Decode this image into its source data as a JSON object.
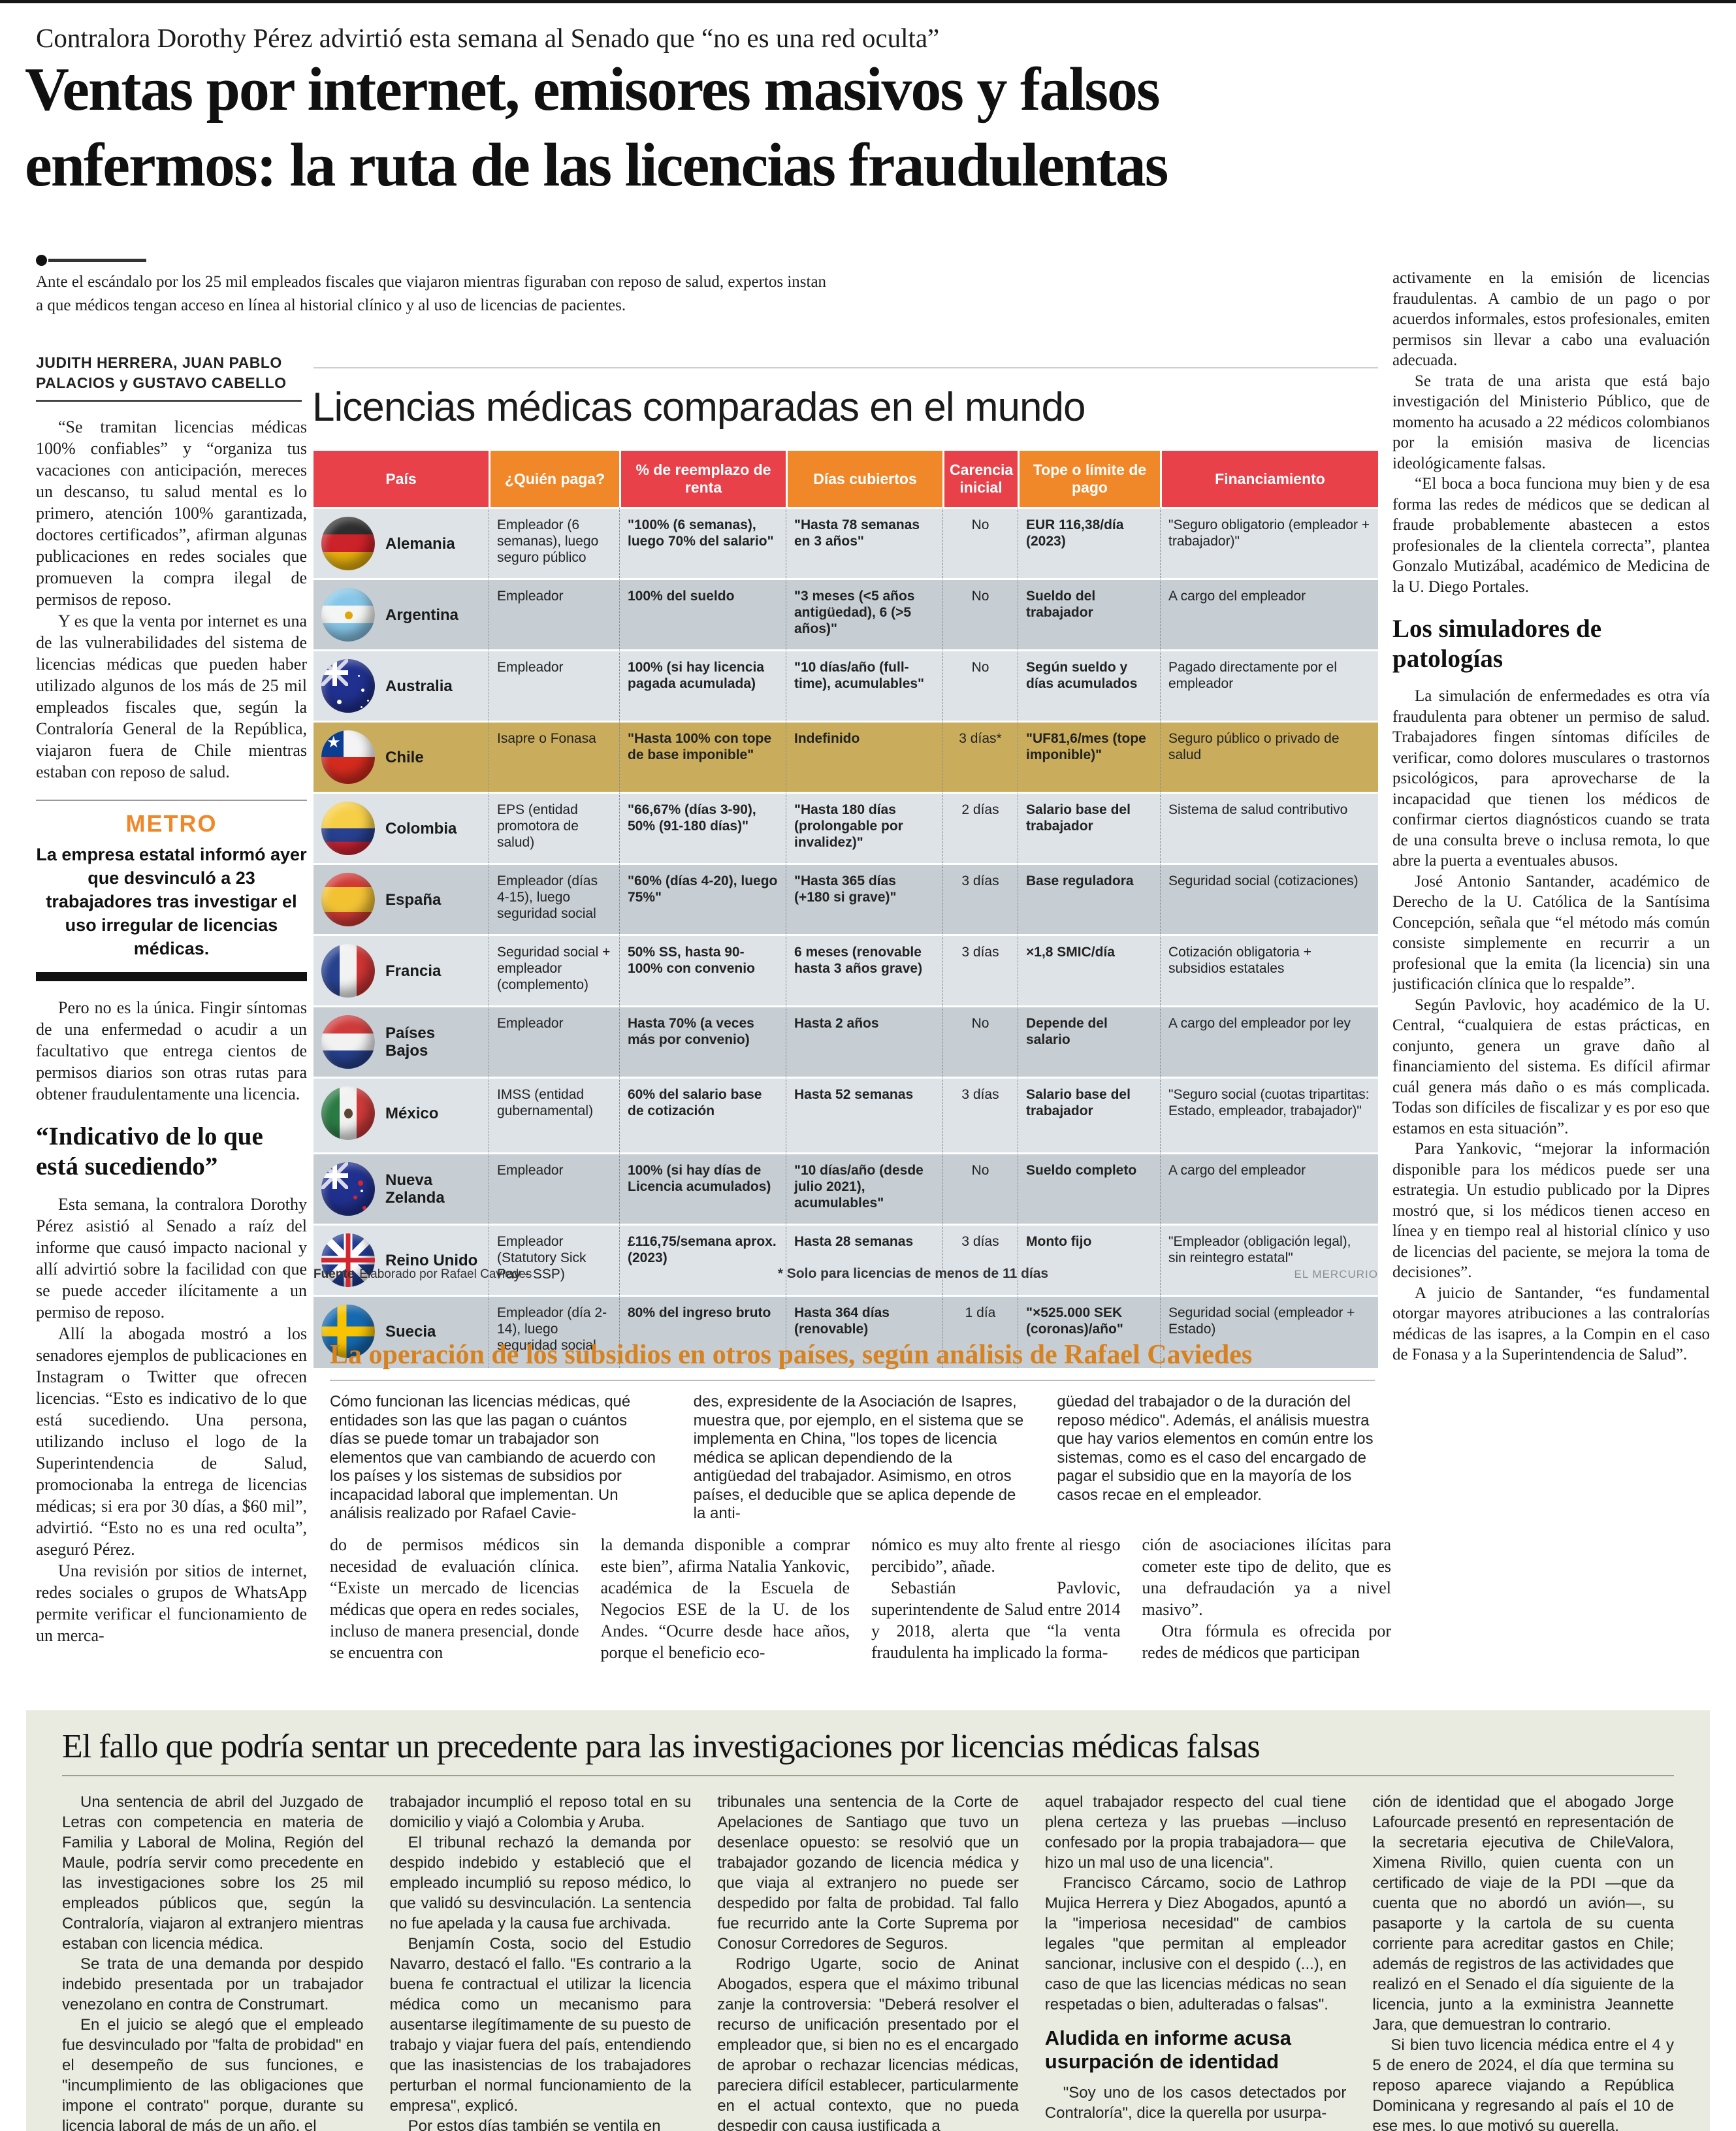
{
  "colors": {
    "accent_red": "#e8414a",
    "accent_orange": "#f0882a",
    "row_light": "#dee3e7",
    "row_dark": "#c6cdd3",
    "chile_gold": "#c9ad5d",
    "section_title_orange": "#d8821f",
    "metro_orange": "#f0882a",
    "bottom_box_bg": "#e9ebe0",
    "credit_gray": "#8a8f94"
  },
  "kicker": "Contralora Dorothy Pérez advirtió esta semana al Senado que “no es una red oculta”",
  "headline": {
    "line1": "Ventas por internet, emisores masivos y falsos",
    "line2": "enfermos: la ruta de las licencias fraudulentas"
  },
  "lede": "Ante el escándalo por los 25 mil empleados fiscales que viajaron mientras figuraban con reposo de salud, expertos instan a que médicos tengan acceso en línea al historial clínico y al uso de licencias de pacientes.",
  "left_column": {
    "byline": "JUDITH HERRERA, JUAN PABLO PALACIOS y GUSTAVO CABELLO",
    "paragraphs": [
      "“Se tramitan licencias médicas 100% confiables” y “organiza tus vacaciones con anticipación, mereces un descanso, tu salud mental es lo primero, atención 100% garantizada, doctores certificados”, afirman algunas publicaciones en redes sociales que promueven la compra ilegal de permisos de reposo.",
      "Y es que la venta por internet es una de las vulnerabilidades del sistema de licencias médicas que pueden haber utilizado algunos de los más de 25 mil empleados fiscales que, según la Contraloría General de la República, viajaron fuera de Chile mientras estaban con reposo de salud."
    ],
    "metro": {
      "label": "METRO",
      "text": "La empresa estatal informó ayer que desvinculó a 23 trabajadores tras investigar el uso irregular de licencias médicas."
    },
    "paragraphs_mid": [
      "Pero no es la única. Fingir síntomas de una enfermedad o acudir a un facultativo que entrega cientos de permisos diarios son otras rutas para obtener fraudulentamente una licencia."
    ],
    "subheading": "“Indicativo de lo que está sucediendo”",
    "paragraphs2": [
      "Esta semana, la contralora Dorothy Pérez asistió al Senado a raíz del informe que causó impacto nacional y allí advirtió sobre la facilidad con que se puede acceder ilícitamente a un permiso de reposo.",
      "Allí la abogada mostró a los senadores ejemplos de publicaciones en Instagram o Twitter que ofrecen licencias. “Esto es indicativo de lo que está sucediendo. Una persona, utilizando incluso el logo de la Superintendencia de Salud, promocionaba la entrega de licencias médicas; si era por 30 días, a $60 mil”, advirtió. “Esto no es una red oculta”, aseguró Pérez.",
      "Una revisión por sitios de internet, redes sociales o grupos de WhatsApp permite verificar el funcionamiento de un merca-"
    ]
  },
  "right_column": {
    "paragraphs": [
      "activamente en la emisión de licencias fraudulentas. A cambio de un pago o por acuerdos informales, estos profesionales, emiten permisos sin llevar a cabo una evaluación adecuada.",
      "Se trata de una arista que está bajo investigación del Ministerio Público, que de momento ha acusado a 22 médicos colombianos por la emisión masiva de licencias ideológicamente falsas.",
      "“El boca a boca funciona muy bien y de esa forma las redes de médicos que se dedican al fraude probablemente abastecen a estos profesionales de la clientela correcta”, plantea Gonzalo Mutizábal, académico de Medicina de la U. Diego Portales."
    ],
    "subheading": "Los simuladores de patologías",
    "paragraphs2": [
      "La simulación de enfermedades es otra vía fraudulenta para obtener un permiso de salud. Trabajadores fingen síntomas difíciles de verificar, como dolores musculares o trastornos psicológicos, para aprovecharse de la incapacidad que tienen los médicos de confirmar ciertos diagnósticos cuando se trata de una consulta breve o inclusa remota, lo que abre la puerta a eventuales abusos.",
      "José Antonio Santander, académico de Derecho de la U. Católica de la Santísima Concepción, señala que “el método más común consiste simplemente en recurrir a un profesional que la emita (la licencia) sin una justificación clínica que lo respalde”.",
      "Según Pavlovic, hoy académico de la U. Central, “cualquiera de estas prácticas, en conjunto, genera un grave daño al financiamiento del sistema. Es difícil afirmar cuál genera más daño o es más complicada. Todas son difíciles de fiscalizar y es por eso que estamos en esta situación”.",
      "Para Yankovic, “mejorar la información disponible para los médicos puede ser una estrategia. Un estudio publicado por la Dipres mostró que, si los médicos tienen acceso en línea y en tiempo real al historial clínico y uso de licencias del paciente, se mejora la toma de decisiones”.",
      "A juicio de Santander, “es fundamental otorgar mayores atribuciones a las contralorías médicas de las isapres, a la Compin en el caso de Fonasa y a la Superintendencia de Salud”."
    ]
  },
  "infographic": {
    "title": "Licencias médicas comparadas en el mundo",
    "columns": [
      "País",
      "¿Quién paga?",
      "% de reemplazo de renta",
      "Días cubiertos",
      "Carencia inicial",
      "Tope o límite de pago",
      "Financiamiento"
    ],
    "rows": [
      {
        "country": "Alemania",
        "flag": "de",
        "highlight": false,
        "cells": [
          "Empleador (6 semanas), luego seguro público",
          "\"100% (6 semanas), luego 70% del salario\"",
          "\"Hasta 78 semanas en 3 años\"",
          "No",
          "EUR 116,38/día (2023)",
          "\"Seguro obligatorio (empleador + trabajador)\""
        ]
      },
      {
        "country": "Argentina",
        "flag": "ar",
        "highlight": false,
        "cells": [
          "Empleador",
          "100% del sueldo",
          "\"3 meses (<5 años antigüedad), 6 (>5 años)\"",
          "No",
          "Sueldo del trabajador",
          "A cargo del empleador"
        ]
      },
      {
        "country": "Australia",
        "flag": "au",
        "highlight": false,
        "cells": [
          "Empleador",
          "100% (si hay licencia pagada acumulada)",
          "\"10 días/año (full-time), acumulables\"",
          "No",
          "Según sueldo y días acumulados",
          "Pagado directamente por el empleador"
        ]
      },
      {
        "country": "Chile",
        "flag": "cl",
        "highlight": true,
        "cells": [
          "Isapre o Fonasa",
          "\"Hasta 100% con tope de base imponible\"",
          "Indefinido",
          "3 días*",
          "\"UF81,6/mes (tope imponible)\"",
          "Seguro público o privado de salud"
        ]
      },
      {
        "country": "Colombia",
        "flag": "co",
        "highlight": false,
        "cells": [
          "EPS (entidad promotora de salud)",
          "\"66,67% (días 3-90), 50% (91-180 días)\"",
          "\"Hasta 180 días (prolongable por invalidez)\"",
          "2 días",
          "Salario base del trabajador",
          "Sistema de salud contributivo"
        ]
      },
      {
        "country": "España",
        "flag": "es",
        "highlight": false,
        "cells": [
          "Empleador (días 4-15), luego seguridad social",
          "\"60% (días 4-20), luego 75%\"",
          "\"Hasta 365 días (+180 si grave)\"",
          "3 días",
          "Base reguladora",
          "Seguridad social (cotizaciones)"
        ]
      },
      {
        "country": "Francia",
        "flag": "fr",
        "highlight": false,
        "cells": [
          "Seguridad social + empleador (complemento)",
          "50% SS, hasta 90-100% con convenio",
          "6 meses (renovable hasta 3 años grave)",
          "3 días",
          "×1,8 SMIC/día",
          "Cotización obligatoria + subsidios estatales"
        ]
      },
      {
        "country": "Países Bajos",
        "flag": "nl",
        "highlight": false,
        "cells": [
          "Empleador",
          "Hasta 70% (a veces más por convenio)",
          "Hasta 2 años",
          "No",
          "Depende del salario",
          "A cargo del empleador por ley"
        ]
      },
      {
        "country": "México",
        "flag": "mx",
        "highlight": false,
        "cells": [
          "IMSS (entidad gubernamental)",
          "60% del salario base de cotización",
          "Hasta 52 semanas",
          "3 días",
          "Salario base del trabajador",
          "\"Seguro social (cuotas tripartitas: Estado, empleador, trabajador)\""
        ]
      },
      {
        "country": "Nueva Zelanda",
        "flag": "nz",
        "highlight": false,
        "cells": [
          "Empleador",
          "100% (si hay días de Licencia acumulados)",
          "\"10 días/año (desde julio 2021), acumulables\"",
          "No",
          "Sueldo completo",
          "A cargo del empleador"
        ]
      },
      {
        "country": "Reino Unido",
        "flag": "gb",
        "highlight": false,
        "cells": [
          "Empleador (Statutory Sick Pay - SSP)",
          "£116,75/semana aprox. (2023)",
          "Hasta 28 semanas",
          "3 días",
          "Monto fijo",
          "\"Empleador (obligación legal), sin reintegro estatal\""
        ]
      },
      {
        "country": "Suecia",
        "flag": "se",
        "highlight": false,
        "cells": [
          "Empleador (día 2-14), luego seguridad social",
          "80% del ingreso bruto",
          "Hasta 364 días (renovable)",
          "1 día",
          "\"×525.000 SEK (coronas)/año\"",
          "Seguridad social (empleador + Estado)"
        ]
      }
    ],
    "footer": {
      "source_label": "Fuente",
      "source": "Elaborado por Rafael Caviedes",
      "note": "* Solo para licencias de menos de 11 días",
      "credit": "EL MERCURIO"
    }
  },
  "analysis": {
    "title": "La operación de los subsidios en otros países, según análisis de Rafael Caviedes",
    "columns": [
      "Cómo funcionan las licencias médicas, qué entidades son las que las pagan o cuántos días se puede tomar un trabajador son elementos que van cambiando de acuerdo con los países y los sistemas de subsidios por incapacidad laboral que implementan. Un análisis realizado por Rafael Cavie-",
      "des, expresidente de la Asociación de Isapres, muestra que, por ejemplo, en el sistema que se implementa en China, \"los topes de licencia médica se aplican dependiendo de la antigüedad del trabajador. Asimismo, en otros países, el deducible que se aplica depende de la anti-",
      "güedad del trabajador o de la duración del reposo médico\". Además, el análisis muestra que hay varios elementos en común entre los sistemas, como es el caso del encargado de pagar el subsidio que en la mayoría de los casos recae en el empleador."
    ],
    "continuation": [
      [
        "do de permisos médicos sin necesidad de evaluación clínica. “Existe un mercado de licencias médicas que opera en redes sociales, incluso de manera presencial, donde se encuentra con"
      ],
      [
        "la demanda disponible a comprar este bien”, afirma Natalia Yankovic, académica de la Escuela de Negocios ESE de la U. de los Andes. “Ocurre desde hace años, porque el beneficio eco-"
      ],
      [
        "nómico es muy alto frente al riesgo percibido”, añade.",
        "Sebastián Pavlovic, superintendente de Salud entre 2014 y 2018, alerta que “la venta fraudulenta ha implicado la forma-"
      ],
      [
        "ción de asociaciones ilícitas para cometer este tipo de delito, que es una defraudación ya a nivel masivo”.",
        "Otra fórmula es ofrecida por redes de médicos que participan"
      ]
    ]
  },
  "bottom": {
    "title": "El fallo que podría sentar un precedente para las investigaciones por licencias médicas falsas",
    "columns": [
      [
        {
          "t": "p",
          "indent": true,
          "text": "Una sentencia de abril del Juzgado de Letras con competencia en materia de Familia y Laboral de Molina, Región del Maule, podría servir como precedente en las investigaciones sobre los 25 mil empleados públicos que, según la Contraloría, viajaron al extranjero mientras estaban con licencia médica."
        },
        {
          "t": "p",
          "indent": true,
          "text": "Se trata de una demanda por despido indebido presentada por un trabajador venezolano en contra de Construmart."
        },
        {
          "t": "p",
          "indent": true,
          "text": "En el juicio se alegó que el empleado fue desvinculado por \"falta de probidad\" en el desempeño de sus funciones, e \"incumplimiento de las obligaciones que impone el contrato\" porque, durante su licencia laboral de más de un año, el"
        }
      ],
      [
        {
          "t": "p",
          "indent": false,
          "text": "trabajador incumplió el reposo total en su domicilio y viajó a Colombia y Aruba."
        },
        {
          "t": "p",
          "indent": true,
          "text": "El tribunal rechazó la demanda por despido indebido y estableció que el empleado incumplió su reposo médico, lo que validó su desvinculación. La sentencia no fue apelada y la causa fue archivada."
        },
        {
          "t": "p",
          "indent": true,
          "text": "Benjamín Costa, socio del Estudio Navarro, destacó el fallo. \"Es contrario a la buena fe contractual el utilizar la licencia médica como un mecanismo para ausentarse ilegítimamente de su puesto de trabajo y viajar fuera del país, entendiendo que las inasistencias de los trabajadores perturban el normal funcionamiento de la empresa\", explicó."
        },
        {
          "t": "p",
          "indent": true,
          "text": "Por estos días también se ventila en"
        }
      ],
      [
        {
          "t": "p",
          "indent": false,
          "text": "tribunales una sentencia de la Corte de Apelaciones de Santiago que tuvo un desenlace opuesto: se resolvió que un trabajador gozando de licencia médica y que viaja al extranjero no puede ser despedido por falta de probidad. Tal fallo fue recurrido ante la Corte Suprema por Conosur Corredores de Seguros."
        },
        {
          "t": "p",
          "indent": true,
          "text": "Rodrigo Ugarte, socio de Aninat Abogados, espera que el máximo tribunal zanje la controversia: \"Deberá resolver el recurso de unificación presentado por el empleador que, si bien no es el encargado de aprobar o rechazar licencias médicas, pareciera difícil establecer, particularmente en el actual contexto, que no pueda despedir con causa justificada a"
        }
      ],
      [
        {
          "t": "p",
          "indent": false,
          "text": "aquel trabajador respecto del cual tiene plena certeza y las pruebas —incluso confesado por la propia trabajadora— que hizo un mal uso de una licencia\"."
        },
        {
          "t": "p",
          "indent": true,
          "text": "Francisco Cárcamo, socio de Lathrop Mujica Herrera y Diez Abogados, apuntó a la \"imperiosa necesidad\" de cambios legales \"que permitan al empleador sancionar, inclusive con el despido (...), en caso de que las licencias médicas no sean respetadas o bien, adulteradas o falsas\"."
        },
        {
          "t": "h",
          "text": "Aludida en informe acusa usurpación de identidad"
        },
        {
          "t": "p",
          "indent": true,
          "text": "\"Soy uno de los casos detectados por Contraloría\", dice la querella por usurpa-"
        }
      ],
      [
        {
          "t": "p",
          "indent": false,
          "text": "ción de identidad que el abogado Jorge Lafourcade presentó en representación de la secretaria ejecutiva de ChileValora, Ximena Rivillo, quien cuenta con un certificado de viaje de la PDI —que da cuenta que no abordó un avión—, su pasaporte y la cartola de su cuenta corriente para acreditar gastos en Chile; además de registros de las actividades que realizó en el Senado el día siguiente de la licencia, junto a la exministra Jeannette Jara, que demuestran lo contrario."
        },
        {
          "t": "p",
          "indent": true,
          "text": "Si bien tuvo licencia médica entre el 4 y 5 de enero de 2024, el día que termina su reposo aparece viajando a República Dominicana y regresando al país el 10 de ese mes, lo que motivó su querella."
        }
      ]
    ]
  }
}
